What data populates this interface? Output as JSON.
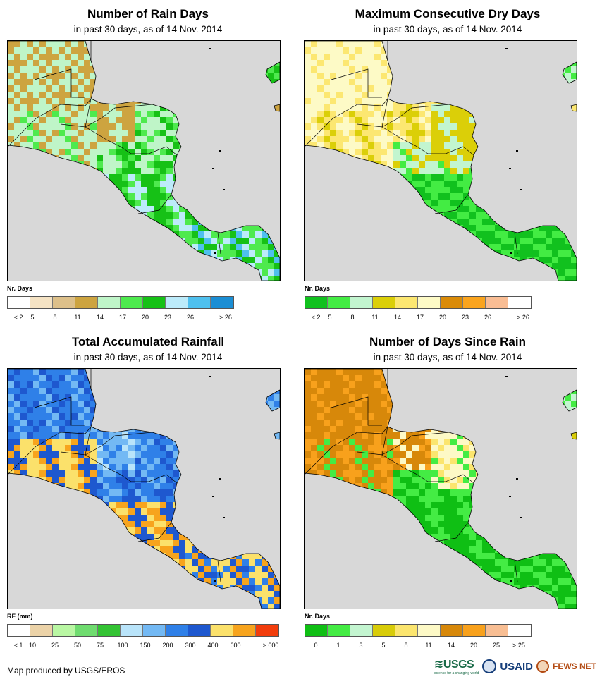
{
  "panels": [
    {
      "title": "Number of Rain Days",
      "subtitle": "in past 30 days, as of 14 Nov. 2014",
      "legend_title": "Nr. Days",
      "colors": [
        "#ffffff",
        "#f5e3c4",
        "#ddc08a",
        "#cda440",
        "#bff5c8",
        "#4eea4e",
        "#16c116",
        "#bcebfa",
        "#4fc0ee",
        "#1b8ed4"
      ],
      "labels": [
        "< 2",
        "5",
        "8",
        "11",
        "14",
        "17",
        "20",
        "23",
        "26",
        "> 26"
      ],
      "label_mode": "boundary"
    },
    {
      "title": "Maximum Consecutive Dry Days",
      "subtitle": "in past 30 days, as of 14 Nov. 2014",
      "legend_title": "Nr. Days",
      "colors": [
        "#11c11e",
        "#43ec43",
        "#c2f5cf",
        "#dbcf08",
        "#fce771",
        "#fdfac6",
        "#da8b08",
        "#faa41e",
        "#f9bd94",
        "#ffffff"
      ],
      "labels": [
        "< 2",
        "5",
        "8",
        "11",
        "14",
        "17",
        "20",
        "23",
        "26",
        "> 26"
      ],
      "label_mode": "boundary"
    },
    {
      "title": "Total Accumulated Rainfall",
      "subtitle": "in past 30 days, as of 14 Nov. 2014",
      "legend_title": "RF (mm)",
      "colors": [
        "#ffffff",
        "#ecd3a8",
        "#b9f7a3",
        "#6fdc6f",
        "#33c333",
        "#b9e4fa",
        "#73b9f4",
        "#2f80e8",
        "#1e58cf",
        "#fbe16b",
        "#f7a41d",
        "#f23d0c"
      ],
      "labels": [
        "< 1",
        "10",
        "25",
        "50",
        "75",
        "100",
        "150",
        "200",
        "300",
        "400",
        "600",
        "> 600"
      ],
      "label_mode": "boundary"
    },
    {
      "title": "Number of Days Since Rain",
      "subtitle": "in past 30 days, as of 14 Nov. 2014",
      "legend_title": "Nr. Days",
      "colors": [
        "#0fbf14",
        "#44ec44",
        "#c3f5d0",
        "#d8cc09",
        "#fbe56e",
        "#fdf9c6",
        "#d7880a",
        "#f8a11c",
        "#f8be93",
        "#ffffff"
      ],
      "labels": [
        "0",
        "1",
        "3",
        "5",
        "8",
        "11",
        "14",
        "20",
        "25",
        "> 25"
      ],
      "label_mode": "center"
    }
  ],
  "footer": "Map produced by USGS/EROS",
  "logos": {
    "usgs": "USGS",
    "usgs_tagline": "science for a changing world",
    "usaid": "USAID",
    "fews": "FEWS NET"
  }
}
